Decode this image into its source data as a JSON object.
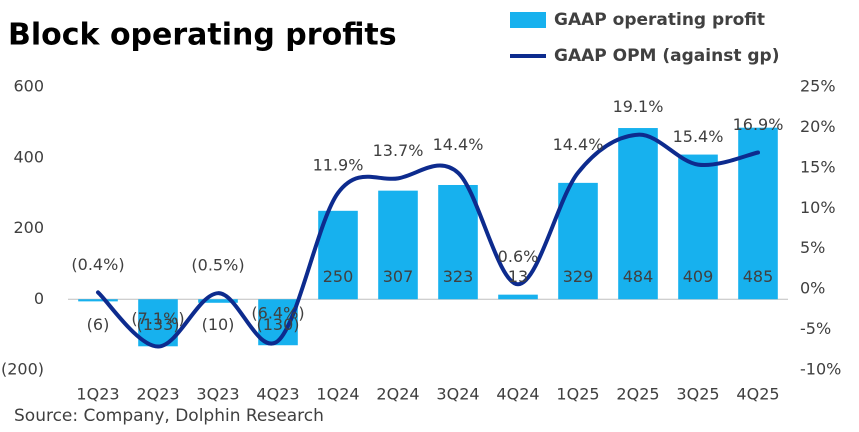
{
  "chart_data": {
    "type": "bar-line",
    "title": "Block operating profits",
    "source": "Source: Company, Dolphin Research",
    "categories": [
      "1Q23",
      "2Q23",
      "3Q23",
      "4Q23",
      "1Q24",
      "2Q24",
      "3Q24",
      "4Q24",
      "1Q25",
      "2Q25",
      "3Q25",
      "4Q25"
    ],
    "series": [
      {
        "name": "GAAP operating profit",
        "type": "bar",
        "color": "#17b1ee",
        "values": [
          -6,
          -133,
          -10,
          -130,
          250,
          307,
          323,
          13,
          329,
          484,
          409,
          485
        ],
        "value_labels": [
          "(6)",
          "(133)",
          "(10)",
          "(130)",
          "250",
          "307",
          "323",
          "13",
          "329",
          "484",
          "409",
          "485"
        ]
      },
      {
        "name": "GAAP OPM (against gp)",
        "type": "line",
        "axis": "y2",
        "color": "#0d2b8e",
        "values": [
          -0.4,
          -7.1,
          -0.5,
          -6.4,
          11.9,
          13.7,
          14.4,
          0.6,
          14.4,
          19.1,
          15.4,
          16.9
        ],
        "value_labels": [
          "(0.4%)",
          "(7.1%)",
          "(0.5%)",
          "(6.4%)",
          "11.9%",
          "13.7%",
          "14.4%",
          "0.6%",
          "14.4%",
          "19.1%",
          "15.4%",
          "16.9%"
        ]
      }
    ],
    "ylim": [
      -200,
      600
    ],
    "yticks": [
      {
        "value": -200,
        "label": "(200)"
      },
      0,
      200,
      400,
      600
    ],
    "y2lim": [
      -10,
      25
    ],
    "y2ticks": [
      {
        "value": -10,
        "label": "-10%"
      },
      {
        "value": -5,
        "label": "-5%"
      },
      {
        "value": 0,
        "label": "0%"
      },
      {
        "value": 5,
        "label": "5%"
      },
      {
        "value": 10,
        "label": "10%"
      },
      {
        "value": 15,
        "label": "15%"
      },
      {
        "value": 20,
        "label": "20%"
      },
      {
        "value": 25,
        "label": "25%"
      }
    ],
    "legend": "top-right"
  }
}
